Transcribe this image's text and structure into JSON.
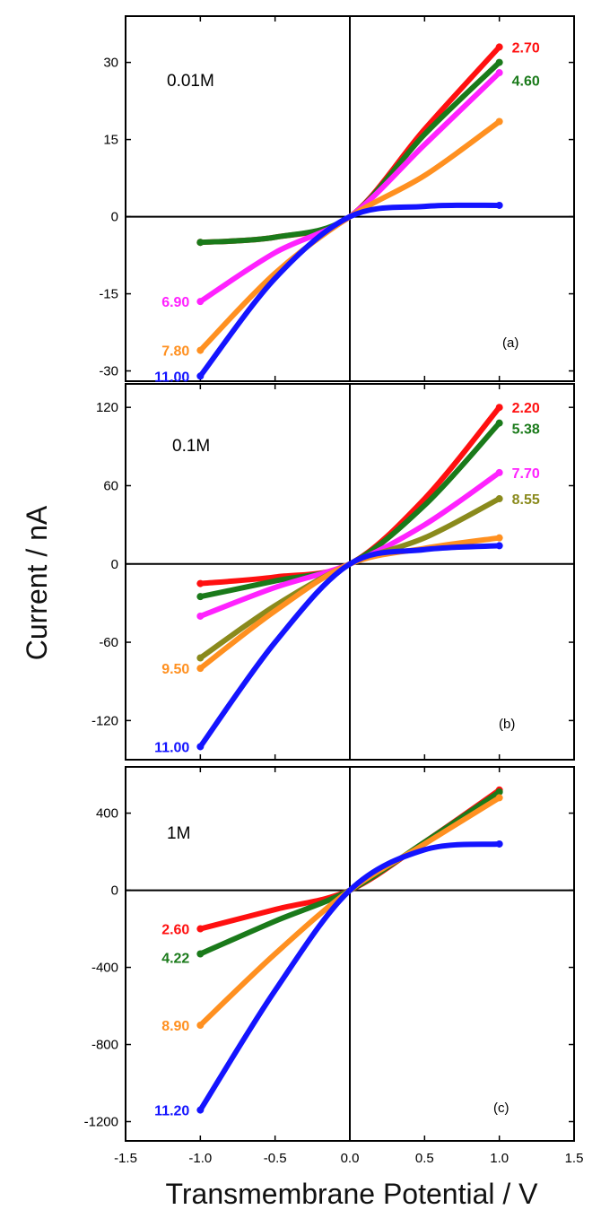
{
  "figure": {
    "ylabel": "Current / nA",
    "xlabel": "Transmembrane Potential / V",
    "x_ticks": [
      "-1.5",
      "-1.0",
      "-0.5",
      "0.0",
      "0.5",
      "1.0",
      "1.5"
    ]
  },
  "colors": {
    "red": "#ff1010",
    "green": "#1a7a1a",
    "magenta": "#ff22ff",
    "orange": "#ff9020",
    "blue": "#1414ff",
    "olive": "#8a8a1c"
  },
  "chart_data": [
    {
      "type": "line",
      "concentration": "0.01M",
      "panel": "(a)",
      "xlabel": "Transmembrane Potential / V",
      "ylabel": "Current / nA",
      "xlim": [
        -1.5,
        1.5
      ],
      "ylim": [
        -32,
        39
      ],
      "yticks": [
        "30",
        "15",
        "0",
        "-15",
        "-30"
      ],
      "x": [
        -1.0,
        -0.5,
        0.0,
        0.5,
        1.0
      ],
      "series": [
        {
          "name": "2.70",
          "color": "red",
          "values": [
            -5.0,
            -4.0,
            0.0,
            17.0,
            33.0
          ],
          "label_side": "right"
        },
        {
          "name": "4.60",
          "color": "green",
          "values": [
            -5.0,
            -4.0,
            0.0,
            16.0,
            30.0
          ],
          "label_side": "right"
        },
        {
          "name": "6.90",
          "color": "magenta",
          "values": [
            -16.5,
            -7.0,
            0.0,
            14.0,
            28.0
          ],
          "label_side": "left"
        },
        {
          "name": "7.80",
          "color": "orange",
          "values": [
            -26.0,
            -11.0,
            0.0,
            8.0,
            18.5
          ],
          "label_side": "left"
        },
        {
          "name": "11.00",
          "color": "blue",
          "values": [
            -31.0,
            -12.0,
            0.0,
            2.0,
            2.2
          ],
          "label_side": "left"
        }
      ]
    },
    {
      "type": "line",
      "concentration": "0.1M",
      "panel": "(b)",
      "xlabel": "Transmembrane Potential / V",
      "ylabel": "Current / nA",
      "xlim": [
        -1.5,
        1.5
      ],
      "ylim": [
        -150,
        138
      ],
      "yticks": [
        "120",
        "60",
        "0",
        "-60",
        "-120"
      ],
      "x": [
        -1.0,
        -0.5,
        0.0,
        0.5,
        1.0
      ],
      "series": [
        {
          "name": "2.20",
          "color": "red",
          "values": [
            -15.0,
            -10.0,
            0.0,
            50.0,
            120.0
          ],
          "label_side": "right"
        },
        {
          "name": "5.38",
          "color": "green",
          "values": [
            -25.0,
            -13.0,
            0.0,
            45.0,
            108.0
          ],
          "label_side": "right"
        },
        {
          "name": "7.70",
          "color": "magenta",
          "values": [
            -40.0,
            -18.0,
            0.0,
            30.0,
            70.0
          ],
          "label_side": "right"
        },
        {
          "name": "8.55",
          "color": "olive",
          "values": [
            -72.0,
            -32.0,
            0.0,
            20.0,
            50.0
          ],
          "label_side": "right"
        },
        {
          "name": "9.50",
          "color": "orange",
          "values": [
            -80.0,
            -36.0,
            0.0,
            12.0,
            20.0
          ],
          "label_side": "left"
        },
        {
          "name": "11.00",
          "color": "blue",
          "values": [
            -140.0,
            -60.0,
            0.0,
            11.0,
            14.0
          ],
          "label_side": "left"
        }
      ]
    },
    {
      "type": "line",
      "concentration": "1M",
      "panel": "(c)",
      "xlabel": "Transmembrane Potential / V",
      "ylabel": "Current / nA",
      "xlim": [
        -1.5,
        1.5
      ],
      "ylim": [
        -1300,
        640
      ],
      "yticks": [
        "400",
        "0",
        "-400",
        "-800",
        "-1200"
      ],
      "x": [
        -1.0,
        -0.5,
        0.0,
        0.5,
        1.0
      ],
      "series": [
        {
          "name": "2.60",
          "color": "red",
          "values": [
            -200.0,
            -100.0,
            0.0,
            250.0,
            520.0
          ],
          "label_side": "left"
        },
        {
          "name": "4.22",
          "color": "green",
          "values": [
            -330.0,
            -160.0,
            0.0,
            250.0,
            510.0
          ],
          "label_side": "left"
        },
        {
          "name": "8.90",
          "color": "orange",
          "values": [
            -700.0,
            -330.0,
            0.0,
            240.0,
            480.0
          ],
          "label_side": "left"
        },
        {
          "name": "11.20",
          "color": "blue",
          "values": [
            -1140.0,
            -520.0,
            0.0,
            210.0,
            240.0
          ],
          "label_side": "left"
        }
      ]
    }
  ]
}
